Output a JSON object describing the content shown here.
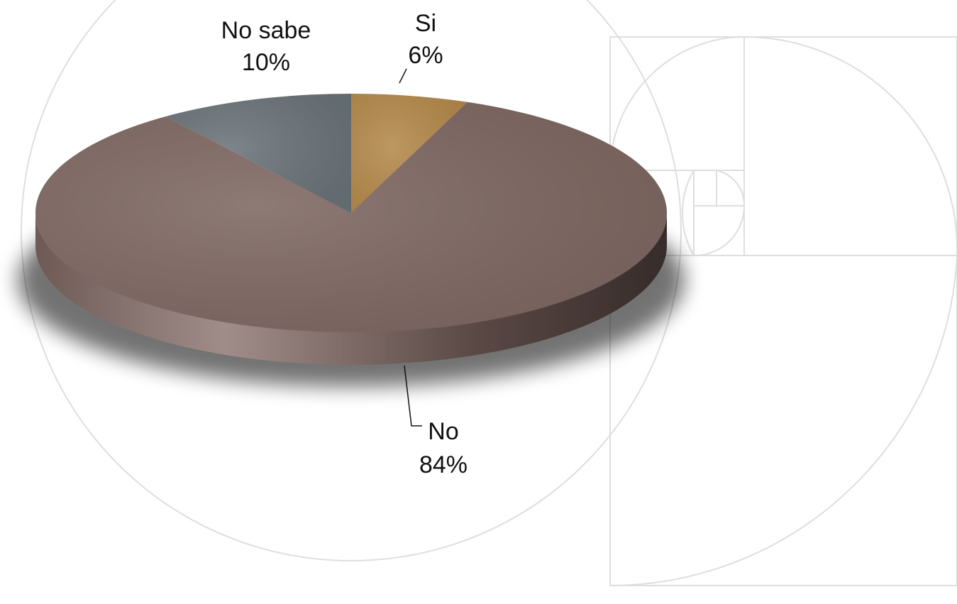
{
  "chart_data": {
    "type": "pie",
    "categories": [
      "Si",
      "No",
      "No sabe"
    ],
    "values": [
      6,
      84,
      10
    ],
    "value_labels": [
      "6%",
      "84%",
      "10%"
    ],
    "colors": [
      "#b58a4c",
      "#7f6862",
      "#6b747a"
    ]
  }
}
